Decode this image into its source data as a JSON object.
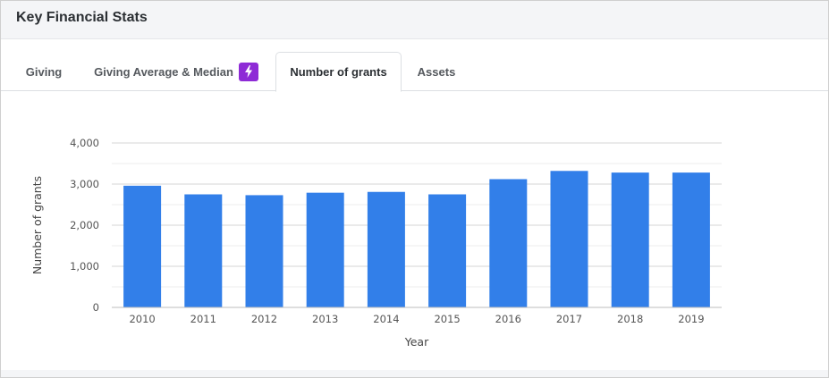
{
  "header": {
    "title": "Key Financial Stats"
  },
  "tabs": [
    {
      "label": "Giving"
    },
    {
      "label": "Giving Average & Median"
    },
    {
      "label": "Number of grants"
    },
    {
      "label": "Assets"
    }
  ],
  "colors": {
    "bar": "#327fe9",
    "grid": "#d6d6d6",
    "badge": "#8e2bd6"
  },
  "icons": {
    "badge": "lightning-bolt-icon"
  },
  "chart_data": {
    "type": "bar",
    "categories": [
      "2010",
      "2011",
      "2012",
      "2013",
      "2014",
      "2015",
      "2016",
      "2017",
      "2018",
      "2019"
    ],
    "values": [
      2960,
      2750,
      2730,
      2790,
      2810,
      2750,
      3120,
      3320,
      3280,
      3280
    ],
    "title": "",
    "xlabel": "Year",
    "ylabel": "Number of grants",
    "ylim": [
      0,
      4000
    ],
    "yticks": [
      0,
      1000,
      2000,
      3000,
      4000
    ],
    "ytick_labels": [
      "0",
      "1,000",
      "2,000",
      "3,000",
      "4,000"
    ],
    "grid": true,
    "legend": "none"
  }
}
